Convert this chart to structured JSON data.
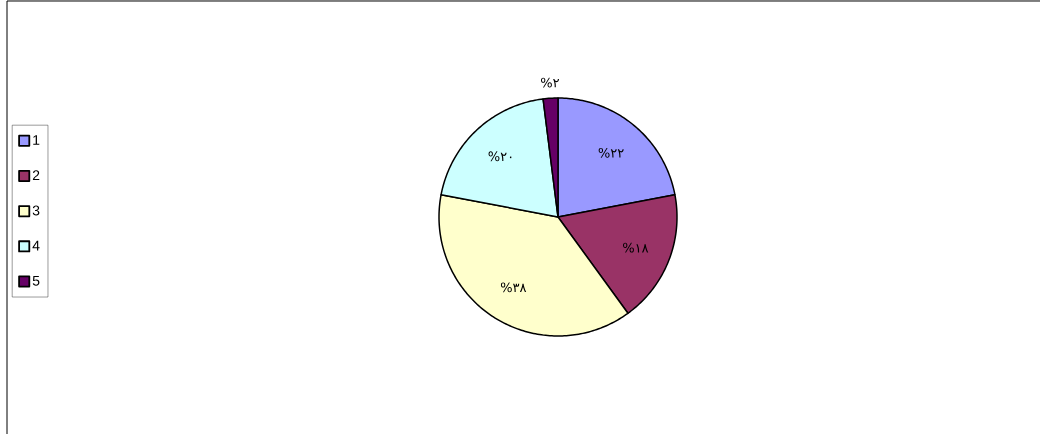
{
  "chart_data": {
    "type": "pie",
    "categories": [
      "1",
      "2",
      "3",
      "4",
      "5"
    ],
    "values": [
      22,
      18,
      38,
      20,
      2
    ],
    "colors": [
      "#9999ff",
      "#993366",
      "#ffffcc",
      "#ccffff",
      "#660066"
    ],
    "value_labels": [
      "%۲۲",
      "%۱۸",
      "%۳۸",
      "%۲۰",
      "%۲"
    ],
    "legend": "left"
  }
}
